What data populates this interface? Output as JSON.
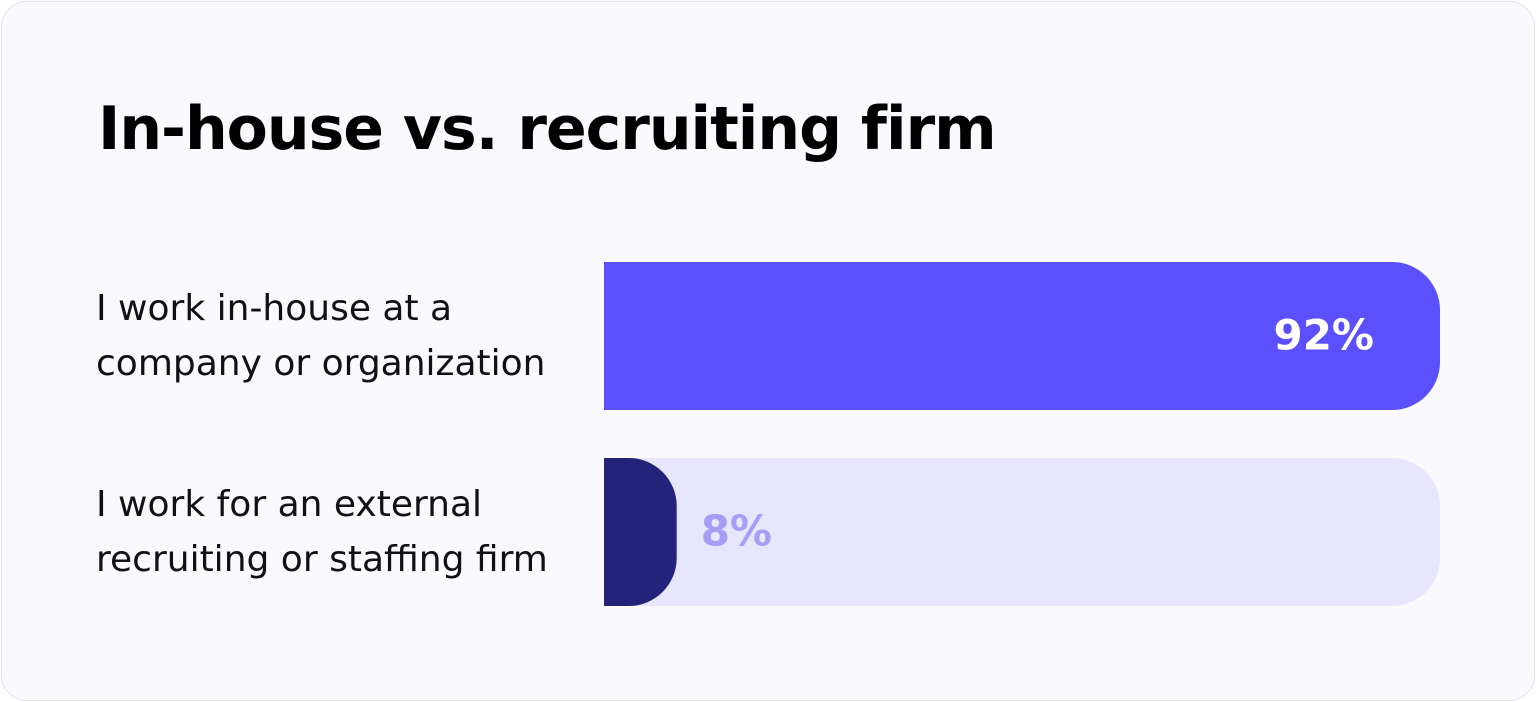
{
  "chart_data": {
    "type": "hbar",
    "title": "In-house vs. recruiting firm",
    "categories": [
      "I work in-house at a company or organization",
      "I work for an external recruiting or staffing firm"
    ],
    "values": [
      92,
      8
    ],
    "value_labels": [
      "92%",
      "8%"
    ],
    "colors": [
      "#5b4ffe",
      "#23237a"
    ],
    "label_colors": [
      "#ffffff",
      "#a59ef5"
    ],
    "track_color": "#e7e6fc",
    "xlim": [
      0,
      92
    ]
  }
}
